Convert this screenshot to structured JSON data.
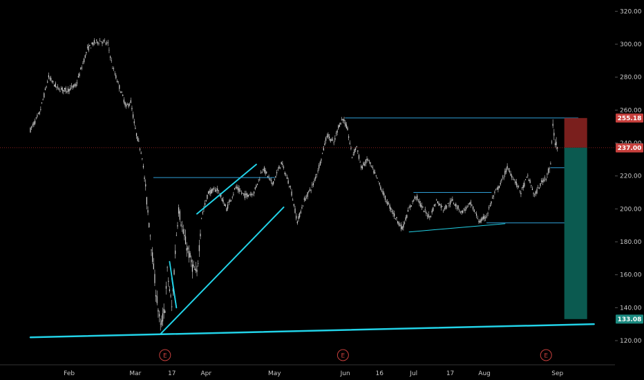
{
  "chart_data": {
    "type": "candlestick",
    "y_axis": {
      "range": [
        100,
        328
      ],
      "ticks": [
        "120.00",
        "140.00",
        "160.00",
        "180.00",
        "200.00",
        "220.00",
        "240.00",
        "260.00",
        "280.00",
        "300.00",
        "320.00"
      ],
      "tick_values": [
        120,
        140,
        160,
        180,
        200,
        220,
        240,
        260,
        280,
        300,
        320
      ]
    },
    "x_axis": {
      "ticks": [
        {
          "label": "Feb",
          "day": 17
        },
        {
          "label": "Mar",
          "day": 46
        },
        {
          "label": "17",
          "day": 62
        },
        {
          "label": "Apr",
          "day": 77
        },
        {
          "label": "May",
          "day": 107
        },
        {
          "label": "Jun",
          "day": 138
        },
        {
          "label": "16",
          "day": 153
        },
        {
          "label": "Jul",
          "day": 168
        },
        {
          "label": "17",
          "day": 184
        },
        {
          "label": "Aug",
          "day": 199
        },
        {
          "label": "Sep",
          "day": 231
        }
      ]
    },
    "price_path": [
      [
        0,
        248
      ],
      [
        4,
        258
      ],
      [
        8,
        280
      ],
      [
        12,
        273
      ],
      [
        16,
        272
      ],
      [
        20,
        275
      ],
      [
        22,
        284
      ],
      [
        25,
        297
      ],
      [
        28,
        301
      ],
      [
        31,
        302
      ],
      [
        34,
        300
      ],
      [
        36,
        286
      ],
      [
        40,
        270
      ],
      [
        42,
        262
      ],
      [
        44,
        265
      ],
      [
        46,
        248
      ],
      [
        49,
        232
      ],
      [
        51,
        205
      ],
      [
        53,
        178
      ],
      [
        55,
        150
      ],
      [
        57,
        128
      ],
      [
        59,
        140
      ],
      [
        60,
        162
      ],
      [
        62,
        140
      ],
      [
        64,
        185
      ],
      [
        65,
        200
      ],
      [
        67,
        185
      ],
      [
        69,
        175
      ],
      [
        71,
        165
      ],
      [
        73,
        160
      ],
      [
        75,
        195
      ],
      [
        78,
        210
      ],
      [
        82,
        212
      ],
      [
        86,
        200
      ],
      [
        90,
        213
      ],
      [
        94,
        208
      ],
      [
        98,
        210
      ],
      [
        102,
        225
      ],
      [
        106,
        215
      ],
      [
        110,
        228
      ],
      [
        114,
        213
      ],
      [
        117,
        192
      ],
      [
        120,
        205
      ],
      [
        124,
        215
      ],
      [
        127,
        228
      ],
      [
        130,
        245
      ],
      [
        133,
        240
      ],
      [
        135,
        250
      ],
      [
        137,
        255
      ],
      [
        139,
        248
      ],
      [
        141,
        232
      ],
      [
        143,
        238
      ],
      [
        145,
        225
      ],
      [
        148,
        230
      ],
      [
        152,
        218
      ],
      [
        156,
        205
      ],
      [
        160,
        195
      ],
      [
        163,
        188
      ],
      [
        166,
        200
      ],
      [
        169,
        208
      ],
      [
        172,
        200
      ],
      [
        175,
        195
      ],
      [
        178,
        205
      ],
      [
        181,
        200
      ],
      [
        185,
        205
      ],
      [
        189,
        198
      ],
      [
        193,
        203
      ],
      [
        197,
        192
      ],
      [
        200,
        196
      ],
      [
        203,
        208
      ],
      [
        206,
        215
      ],
      [
        209,
        225
      ],
      [
        212,
        218
      ],
      [
        215,
        210
      ],
      [
        218,
        220
      ],
      [
        221,
        208
      ],
      [
        224,
        216
      ],
      [
        226,
        220
      ],
      [
        228,
        226
      ],
      [
        229,
        252
      ],
      [
        230,
        240
      ],
      [
        231,
        237
      ]
    ],
    "trendlines": [
      {
        "from": [
          0,
          122
        ],
        "to": [
          247,
          130
        ],
        "width": 2.5
      },
      {
        "from": [
          57,
          124
        ],
        "to": [
          111,
          201
        ],
        "width": 2
      },
      {
        "from": [
          73,
          197
        ],
        "to": [
          99,
          227
        ],
        "width": 2
      },
      {
        "from": [
          61,
          168
        ],
        "to": [
          64,
          140
        ],
        "width": 1.8
      },
      {
        "from": [
          62,
          158
        ],
        "to": [
          64,
          140
        ],
        "width": 1.8
      },
      {
        "from": [
          166,
          186
        ],
        "to": [
          208,
          191
        ],
        "width": 1
      },
      {
        "from": [
          138,
          255.2
        ],
        "to": [
          240,
          255.2
        ],
        "width": 1
      },
      {
        "from": [
          54,
          219
        ],
        "to": [
          107,
          219
        ],
        "width": 1
      },
      {
        "from": [
          168,
          210
        ],
        "to": [
          202,
          210
        ],
        "width": 1
      },
      {
        "from": [
          200,
          191.5
        ],
        "to": [
          243,
          191.5
        ],
        "width": 1
      },
      {
        "from": [
          228,
          225
        ],
        "to": [
          239,
          225
        ],
        "width": 1
      }
    ],
    "position": {
      "day_start": 234,
      "day_end": 244,
      "entry": 237.16,
      "stop": 255.18,
      "target": 133.08
    },
    "current_price_line": 237.16,
    "price_labels": [
      {
        "text": "255.18",
        "value": 255.18,
        "color": "#c8403d"
      },
      {
        "text": "237.16",
        "value": 237.16,
        "color": "#5d5d5d"
      },
      {
        "text": "237.00",
        "value": 237.0,
        "color": "#c8403d"
      },
      {
        "text": "133.08",
        "value": 133.08,
        "color": "#1b8a80"
      }
    ],
    "earnings_markers": [
      {
        "label": "E",
        "day": 59
      },
      {
        "label": "E",
        "day": 137
      },
      {
        "label": "E",
        "day": 226
      }
    ],
    "colors": {
      "background": "#000000",
      "axis_text": "#c9c9c9",
      "candle": "#d8d8d8",
      "trendline": "#22d3e8",
      "horizontal_line": "#2f9fd8",
      "stop_zone": "#7a1f1d",
      "target_zone": "#0b5a50",
      "earnings": "#c8403d",
      "current_price_line": "#8a1f1f"
    }
  }
}
